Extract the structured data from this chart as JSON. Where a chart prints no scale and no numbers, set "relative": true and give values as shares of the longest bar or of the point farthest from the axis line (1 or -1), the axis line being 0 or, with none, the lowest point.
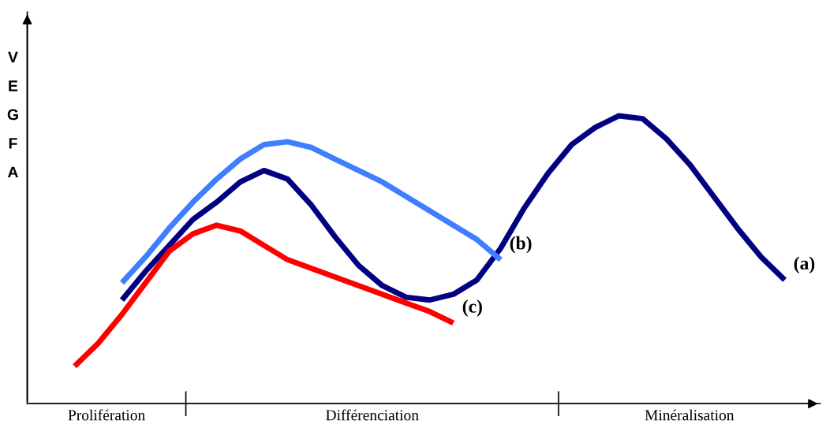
{
  "chart_data": {
    "type": "line",
    "relative": true,
    "ylabel": "VEGFA",
    "legend": false,
    "marker": "none",
    "line_style": "solid",
    "categories": [
      null,
      null,
      null,
      null,
      null,
      null,
      null,
      null,
      null,
      null,
      null,
      null,
      null,
      null,
      null,
      null,
      null,
      null,
      null,
      null,
      null,
      null,
      null,
      null,
      null,
      null,
      null,
      null,
      null,
      null,
      null,
      null,
      null,
      null
    ],
    "series": [
      {
        "name": "(a)",
        "color": "#000080",
        "values": [
          null,
          null,
          null,
          null,
          0.36,
          0.46,
          0.55,
          0.64,
          0.7,
          0.77,
          0.81,
          0.78,
          0.69,
          0.58,
          0.48,
          0.41,
          0.37,
          0.36,
          0.38,
          0.43,
          0.54,
          0.68,
          0.8,
          0.9,
          0.96,
          1.0,
          0.99,
          0.92,
          0.83,
          0.72,
          0.61,
          0.51,
          0.43,
          null
        ]
      },
      {
        "name": "(b)",
        "color": "#3f7fff",
        "values": [
          null,
          null,
          null,
          null,
          0.42,
          0.51,
          0.61,
          0.7,
          0.78,
          0.85,
          0.9,
          0.91,
          0.89,
          0.85,
          0.81,
          0.77,
          0.72,
          0.67,
          0.62,
          0.57,
          0.5,
          null,
          null,
          null,
          null,
          null,
          null,
          null,
          null,
          null,
          null,
          null,
          null,
          null
        ]
      },
      {
        "name": "(c)",
        "color": "#ff0000",
        "values": [
          null,
          null,
          0.13,
          0.21,
          0.31,
          0.42,
          0.53,
          0.59,
          0.62,
          0.6,
          0.55,
          0.5,
          0.47,
          0.44,
          0.41,
          0.38,
          0.35,
          0.32,
          0.28,
          null,
          null,
          null,
          null,
          null,
          null,
          null,
          null,
          null,
          null,
          null,
          null,
          null,
          null,
          null
        ]
      }
    ],
    "annotations": [
      "Prolifération",
      "Différenciation",
      "Minéralisation"
    ]
  }
}
